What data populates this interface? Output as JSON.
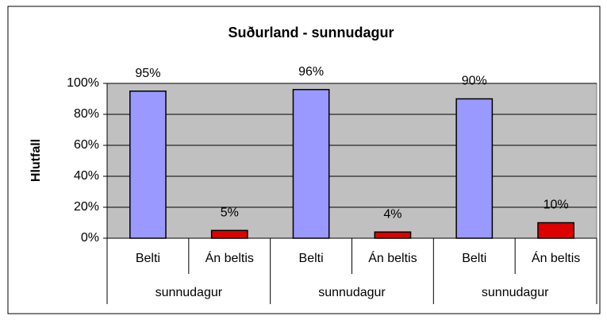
{
  "chart_data": {
    "type": "bar",
    "title": "Suðurland - sunnudagur",
    "y_label": "Hlutfall",
    "categories": [
      "Belti",
      "Án beltis",
      "Belti",
      "Án beltis",
      "Belti",
      "Án beltis"
    ],
    "groups": [
      "sunnudagur",
      "sunnudagur",
      "sunnudagur"
    ],
    "values": [
      95,
      5,
      96,
      4,
      90,
      10
    ],
    "value_labels": [
      "95%",
      "5%",
      "96%",
      "4%",
      "90%",
      "10%"
    ],
    "colors": [
      "#9999ff",
      "#dd0000",
      "#9999ff",
      "#dd0000",
      "#9999ff",
      "#dd0000"
    ],
    "ylim": [
      0,
      100
    ],
    "yticks": [
      {
        "value": 0,
        "label": "0%"
      },
      {
        "value": 20,
        "label": "20%"
      },
      {
        "value": 40,
        "label": "40%"
      },
      {
        "value": 60,
        "label": "60%"
      },
      {
        "value": 80,
        "label": "80%"
      },
      {
        "value": 100,
        "label": "100%"
      }
    ],
    "grid": true
  }
}
